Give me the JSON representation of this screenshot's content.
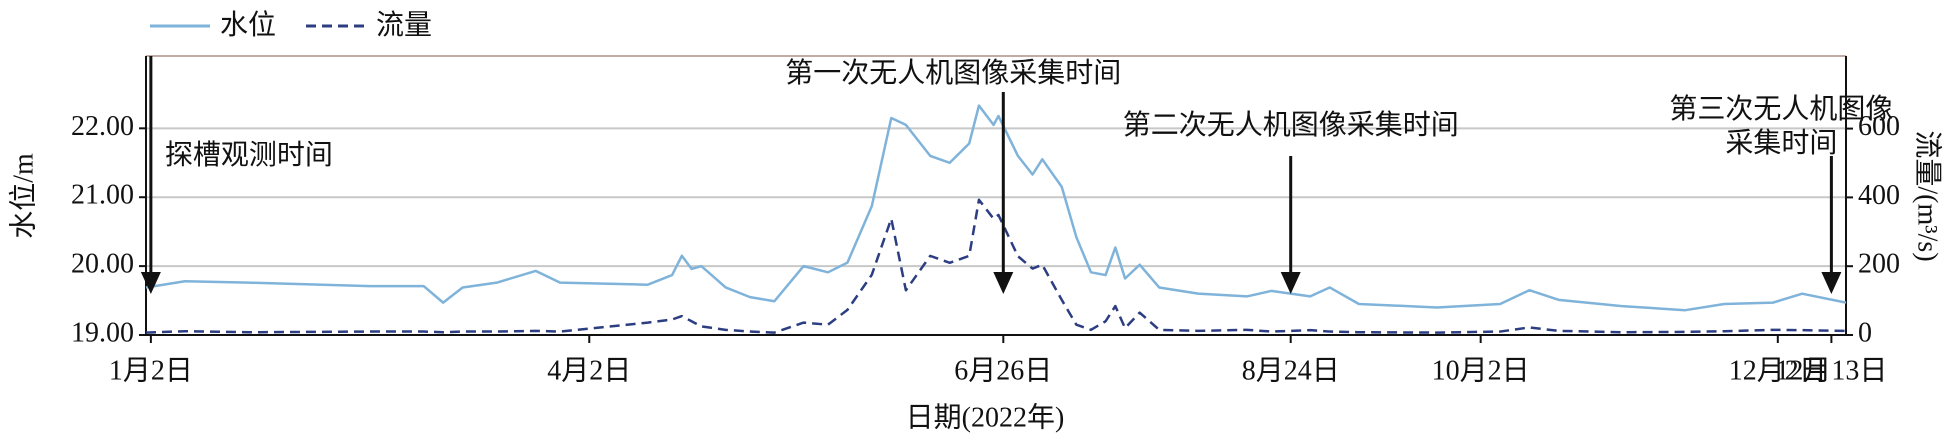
{
  "chart_data": {
    "type": "line",
    "xlabel": "日期(2022年)",
    "ylabel": "水位/m",
    "y2label": "流量/(m³/s)",
    "x": [
      "2022-01-01",
      "2022-01-09",
      "2022-01-22",
      "2022-02-16",
      "2022-02-27",
      "2022-03-03",
      "2022-03-07",
      "2022-03-14",
      "2022-03-22",
      "2022-03-27",
      "2022-04-14",
      "2022-04-19",
      "2022-04-21",
      "2022-04-23",
      "2022-04-25",
      "2022-04-30",
      "2022-05-05",
      "2022-05-10",
      "2022-05-16",
      "2022-05-21",
      "2022-05-25",
      "2022-05-30",
      "2022-06-03",
      "2022-06-06",
      "2022-06-11",
      "2022-06-15",
      "2022-06-19",
      "2022-06-21",
      "2022-06-24",
      "2022-06-25",
      "2022-06-29",
      "2022-07-02",
      "2022-07-04",
      "2022-07-08",
      "2022-07-11",
      "2022-07-14",
      "2022-07-17",
      "2022-07-19",
      "2022-07-21",
      "2022-07-24",
      "2022-07-28",
      "2022-08-05",
      "2022-08-15",
      "2022-08-20",
      "2022-08-28",
      "2022-09-01",
      "2022-09-07",
      "2022-09-23",
      "2022-10-06",
      "2022-10-12",
      "2022-10-18",
      "2022-10-31",
      "2022-11-13",
      "2022-11-21",
      "2022-12-01",
      "2022-12-07",
      "2022-12-16"
    ],
    "series": [
      {
        "name": "水位",
        "color": "#7fb3da",
        "dash": false,
        "values": [
          19.69,
          19.78,
          19.76,
          19.71,
          19.71,
          19.47,
          19.69,
          19.76,
          19.93,
          19.76,
          19.73,
          19.87,
          20.15,
          19.96,
          20.0,
          19.69,
          19.55,
          19.49,
          20.0,
          19.91,
          20.05,
          20.87,
          22.15,
          22.05,
          21.6,
          21.5,
          21.78,
          22.33,
          22.05,
          22.18,
          21.6,
          21.33,
          21.55,
          21.15,
          20.42,
          19.91,
          19.87,
          20.27,
          19.82,
          20.02,
          19.69,
          19.6,
          19.56,
          19.64,
          19.56,
          19.69,
          19.45,
          19.4,
          19.45,
          19.65,
          19.51,
          19.42,
          19.36,
          19.45,
          19.47,
          19.6,
          19.47
        ]
      },
      {
        "name": "流量",
        "color": "#2c3d82",
        "dash": true,
        "axis": "y2",
        "values": [
          7,
          11,
          8,
          10,
          10,
          8,
          10,
          10,
          12,
          10,
          36,
          45,
          55,
          40,
          25,
          15,
          10,
          7,
          36,
          30,
          73,
          175,
          338,
          130,
          230,
          210,
          230,
          393,
          338,
          349,
          229,
          193,
          204,
          102,
          30,
          15,
          40,
          84,
          20,
          65,
          15,
          12,
          15,
          10,
          14,
          10,
          8,
          7,
          10,
          22,
          12,
          8,
          9,
          11,
          15,
          14,
          12
        ]
      }
    ],
    "xlim": [
      "2022-01-01",
      "2022-12-16"
    ],
    "xticks": [
      {
        "value": "2022-01-02",
        "label": "1月2日"
      },
      {
        "value": "2022-04-02",
        "label": "4月2日"
      },
      {
        "value": "2022-06-26",
        "label": "6月26日"
      },
      {
        "value": "2022-08-24",
        "label": "8月24日"
      },
      {
        "value": "2022-10-02",
        "label": "10月2日"
      },
      {
        "value": "2022-12-02",
        "label": "12月2日"
      },
      {
        "value": "2022-12-13",
        "label": "12月13日"
      }
    ],
    "ylim": [
      19,
      23.05
    ],
    "yticks": [
      {
        "value": 19,
        "label": "19.00"
      },
      {
        "value": 20,
        "label": "20.00"
      },
      {
        "value": 21,
        "label": "21.00"
      },
      {
        "value": 22,
        "label": "22.00"
      }
    ],
    "y2lim": [
      0,
      811
    ],
    "y2ticks": [
      0,
      200,
      400,
      600
    ],
    "grid": true,
    "legend": "top-left",
    "annotations": [
      {
        "lines": [
          "探槽观测时间"
        ],
        "x": "2022-01-02"
      },
      {
        "lines": [
          "第一次无人机图像采集时间"
        ],
        "x": "2022-06-26"
      },
      {
        "lines": [
          "第二次无人机图像采集时间"
        ],
        "x": "2022-08-24"
      },
      {
        "lines": [
          "第三次无人机图像",
          "采集时间"
        ],
        "x": "2022-12-13"
      }
    ]
  }
}
